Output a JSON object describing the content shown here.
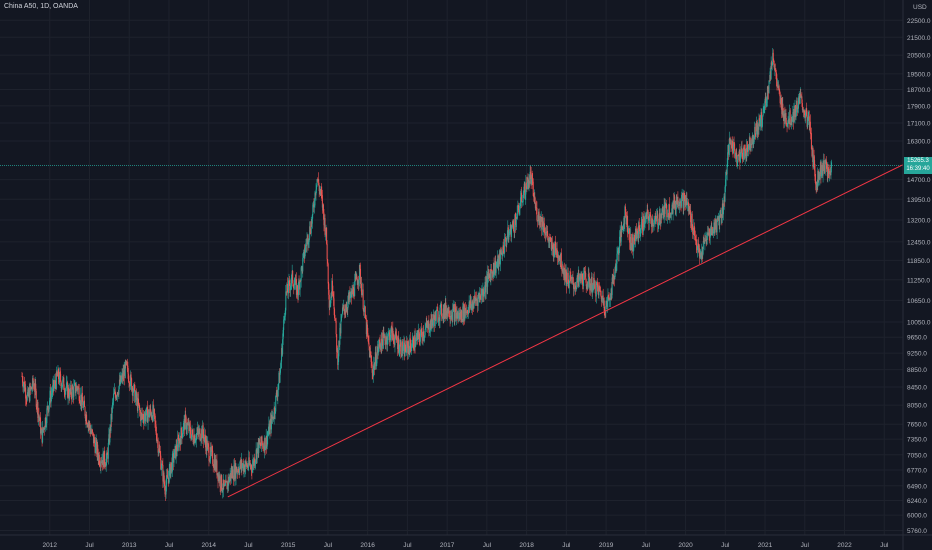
{
  "header": {
    "symbol": "China A50, 1D, OANDA",
    "currency": "USD"
  },
  "price_tag": {
    "price": "15265.3",
    "countdown": "16:39:40"
  },
  "colors": {
    "background": "#131722",
    "grid": "#1e222d",
    "up": "#26a69a",
    "down": "#ef5350",
    "trendline": "#f23645",
    "price_line": "#26a69a"
  },
  "chart_data": {
    "type": "candlestick",
    "title": "China A50, 1D, OANDA",
    "y_axis_labels": [
      "22500.0",
      "21500.0",
      "20500.0",
      "19500.0",
      "18700.0",
      "17900.0",
      "17100.0",
      "16300.0",
      "14700.0",
      "13950.0",
      "13200.0",
      "12450.0",
      "11850.0",
      "11250.0",
      "10650.0",
      "10050.0",
      "9650.0",
      "9250.0",
      "8850.0",
      "8450.0",
      "8050.0",
      "7650.0",
      "7350.0",
      "7050.0",
      "6770.0",
      "6490.0",
      "6240.0",
      "6000.0",
      "5760.0"
    ],
    "x_axis_labels": [
      "2012",
      "Jul",
      "2013",
      "Jul",
      "2014",
      "Jul",
      "2015",
      "Jul",
      "2016",
      "Jul",
      "2017",
      "Jul",
      "2018",
      "Jul",
      "2019",
      "Jul",
      "2020",
      "Jul",
      "2021",
      "Jul",
      "2022",
      "Jul"
    ],
    "scale": "log",
    "ylim": [
      5600,
      23500
    ],
    "xlim": [
      2011.55,
      2023.0
    ],
    "last_price": 15265.3,
    "grid": true,
    "price_path": [
      [
        2011.65,
        8700
      ],
      [
        2011.72,
        8200
      ],
      [
        2011.8,
        8550
      ],
      [
        2011.9,
        7400
      ],
      [
        2012.0,
        8200
      ],
      [
        2012.1,
        8700
      ],
      [
        2012.25,
        8300
      ],
      [
        2012.35,
        8450
      ],
      [
        2012.5,
        7600
      ],
      [
        2012.62,
        7000
      ],
      [
        2012.72,
        6950
      ],
      [
        2012.8,
        8200
      ],
      [
        2012.88,
        8500
      ],
      [
        2012.96,
        8900
      ],
      [
        2013.05,
        8400
      ],
      [
        2013.15,
        7800
      ],
      [
        2013.3,
        7900
      ],
      [
        2013.4,
        6900
      ],
      [
        2013.45,
        6450
      ],
      [
        2013.55,
        6950
      ],
      [
        2013.7,
        7700
      ],
      [
        2013.8,
        7400
      ],
      [
        2013.92,
        7500
      ],
      [
        2014.0,
        7100
      ],
      [
        2014.08,
        6900
      ],
      [
        2014.14,
        6600
      ],
      [
        2014.2,
        6400
      ],
      [
        2014.28,
        6700
      ],
      [
        2014.4,
        6850
      ],
      [
        2014.55,
        6850
      ],
      [
        2014.62,
        7200
      ],
      [
        2014.72,
        7300
      ],
      [
        2014.82,
        7900
      ],
      [
        2014.9,
        8800
      ],
      [
        2014.97,
        10800
      ],
      [
        2015.05,
        11300
      ],
      [
        2015.12,
        10900
      ],
      [
        2015.22,
        12300
      ],
      [
        2015.3,
        13200
      ],
      [
        2015.36,
        14800
      ],
      [
        2015.42,
        14000
      ],
      [
        2015.48,
        12600
      ],
      [
        2015.52,
        10500
      ],
      [
        2015.56,
        11200
      ],
      [
        2015.62,
        9100
      ],
      [
        2015.68,
        10300
      ],
      [
        2015.8,
        10800
      ],
      [
        2015.9,
        11500
      ],
      [
        2016.0,
        9600
      ],
      [
        2016.06,
        8800
      ],
      [
        2016.15,
        9500
      ],
      [
        2016.3,
        9750
      ],
      [
        2016.45,
        9300
      ],
      [
        2016.6,
        9550
      ],
      [
        2016.75,
        9900
      ],
      [
        2016.9,
        10300
      ],
      [
        2017.0,
        10400
      ],
      [
        2017.15,
        10200
      ],
      [
        2017.3,
        10500
      ],
      [
        2017.45,
        10900
      ],
      [
        2017.55,
        11500
      ],
      [
        2017.65,
        11800
      ],
      [
        2017.75,
        12600
      ],
      [
        2017.85,
        13100
      ],
      [
        2017.95,
        14100
      ],
      [
        2018.05,
        14850
      ],
      [
        2018.12,
        13500
      ],
      [
        2018.22,
        13000
      ],
      [
        2018.3,
        12300
      ],
      [
        2018.4,
        12100
      ],
      [
        2018.5,
        11300
      ],
      [
        2018.6,
        11100
      ],
      [
        2018.7,
        11300
      ],
      [
        2018.8,
        11150
      ],
      [
        2018.92,
        10900
      ],
      [
        2019.0,
        10450
      ],
      [
        2019.08,
        11100
      ],
      [
        2019.16,
        12300
      ],
      [
        2019.24,
        13500
      ],
      [
        2019.32,
        12300
      ],
      [
        2019.4,
        12800
      ],
      [
        2019.52,
        13300
      ],
      [
        2019.62,
        13100
      ],
      [
        2019.72,
        13500
      ],
      [
        2019.82,
        13600
      ],
      [
        2019.92,
        14000
      ],
      [
        2020.02,
        13800
      ],
      [
        2020.1,
        12900
      ],
      [
        2020.18,
        11900
      ],
      [
        2020.26,
        12600
      ],
      [
        2020.4,
        13100
      ],
      [
        2020.48,
        13700
      ],
      [
        2020.52,
        15400
      ],
      [
        2020.56,
        16300
      ],
      [
        2020.66,
        15600
      ],
      [
        2020.76,
        15900
      ],
      [
        2020.86,
        16600
      ],
      [
        2020.96,
        17300
      ],
      [
        2021.05,
        19000
      ],
      [
        2021.1,
        20600
      ],
      [
        2021.14,
        19200
      ],
      [
        2021.2,
        17900
      ],
      [
        2021.28,
        17200
      ],
      [
        2021.36,
        17500
      ],
      [
        2021.44,
        18200
      ],
      [
        2021.5,
        17600
      ],
      [
        2021.56,
        17000
      ],
      [
        2021.6,
        15600
      ],
      [
        2021.64,
        14600
      ],
      [
        2021.7,
        15100
      ],
      [
        2021.76,
        15300
      ],
      [
        2021.8,
        14800
      ],
      [
        2021.84,
        15265.3
      ]
    ],
    "trendline": {
      "x1": 2014.24,
      "y1": 6300,
      "x2": 2023.0,
      "y2": 15300
    },
    "annotations": []
  }
}
